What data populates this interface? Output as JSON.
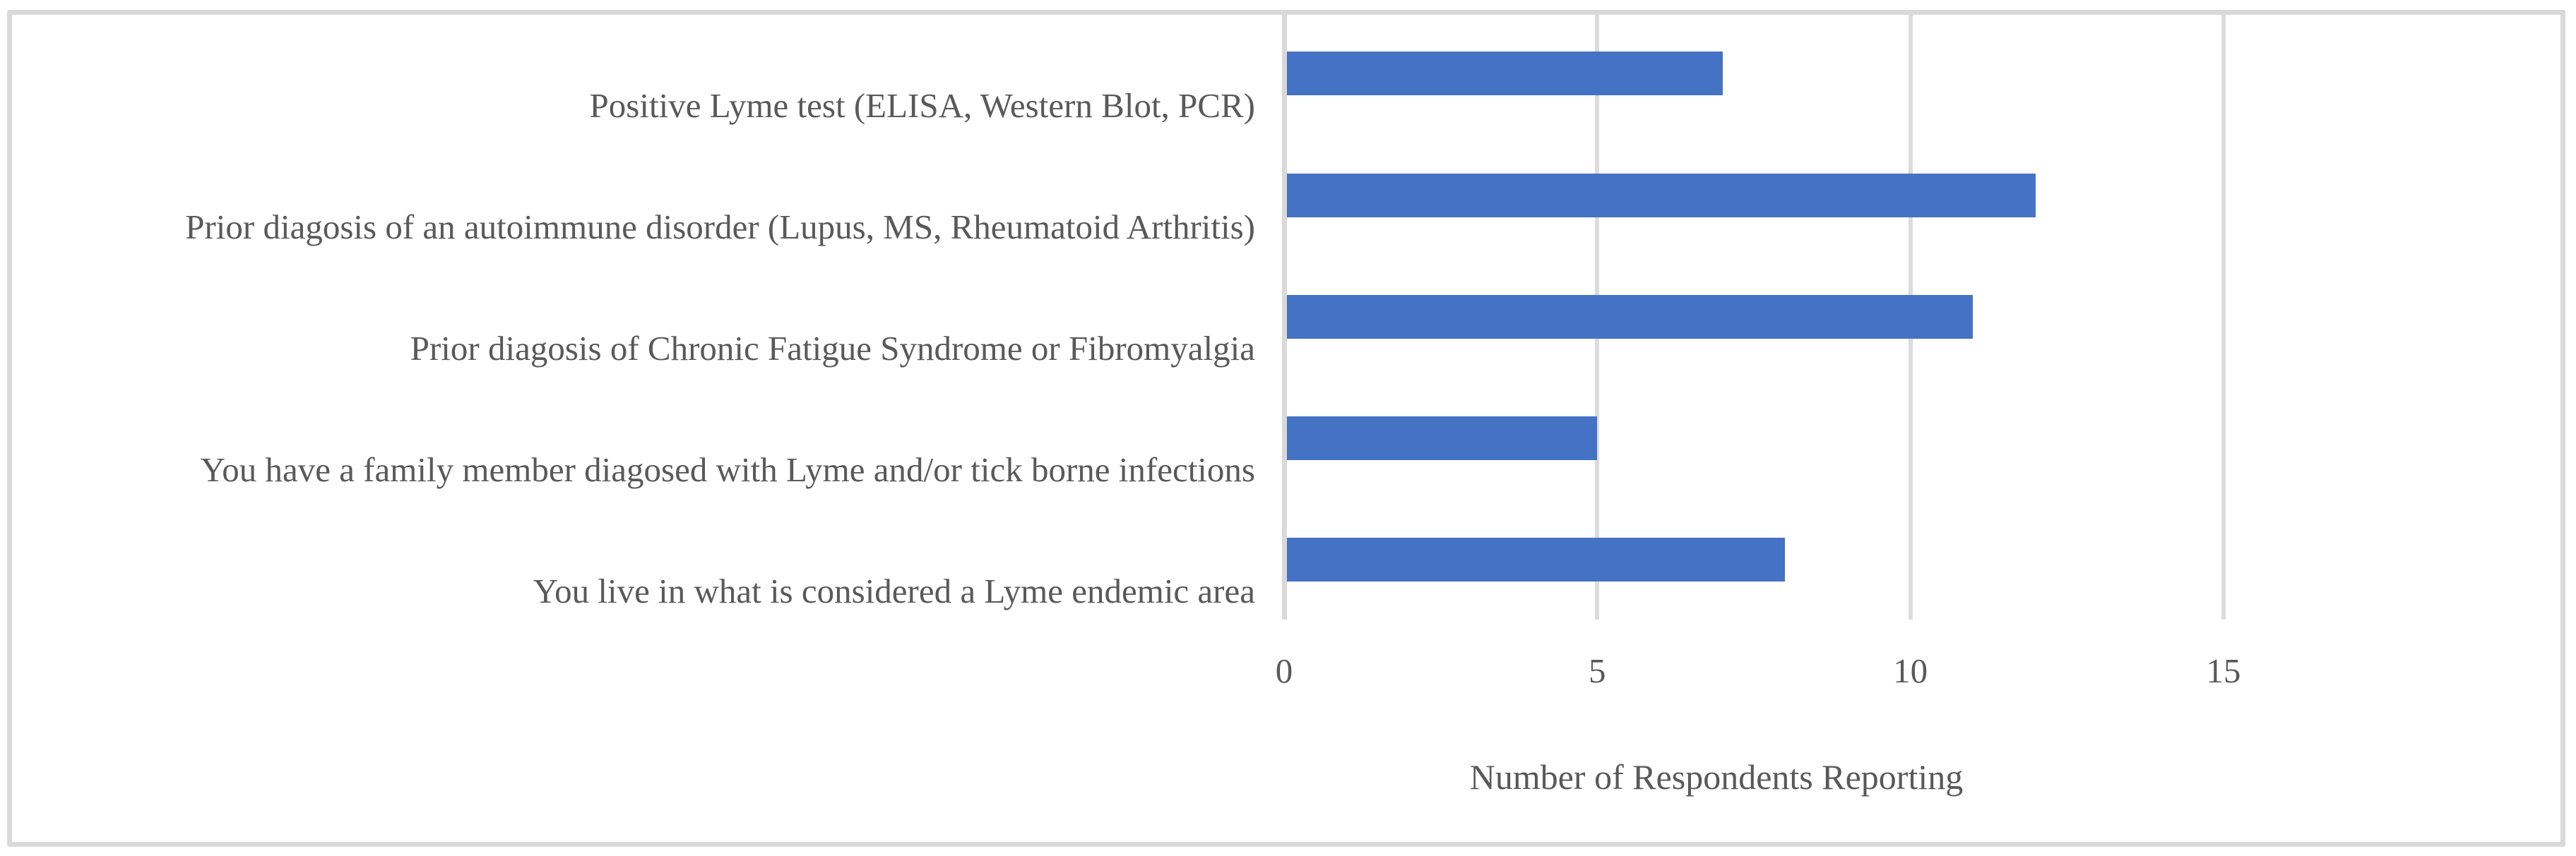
{
  "figure": {
    "background_color": "#FFFFFF",
    "border_color": "#D9D9D9"
  },
  "chart_data": {
    "type": "bar",
    "orientation": "horizontal",
    "title": "",
    "categories": [
      "Positive Lyme test (ELISA, Western Blot, PCR)",
      "Prior diagosis of an autoimmune disorder (Lupus, MS, Rheumatoid Arthritis)",
      "Prior diagosis of Chronic Fatigue Syndrome or Fibromyalgia",
      "You have a family member diagosed with Lyme and/or tick borne infections",
      "You live in what is considered a Lyme endemic area"
    ],
    "values": [
      7,
      12,
      11,
      5,
      8
    ],
    "xlabel": "Number of Respondents Reporting",
    "xlim": [
      0,
      20
    ],
    "xticks": [
      0,
      5,
      10,
      15
    ],
    "gridlines_at": [
      5,
      10,
      15
    ],
    "grid_on": true,
    "legend": "none",
    "bar_color": "#4472C4",
    "gridline_color": "#DCDCDC",
    "axis_line_color": "#D9D9D9",
    "text_color": "#595959"
  }
}
